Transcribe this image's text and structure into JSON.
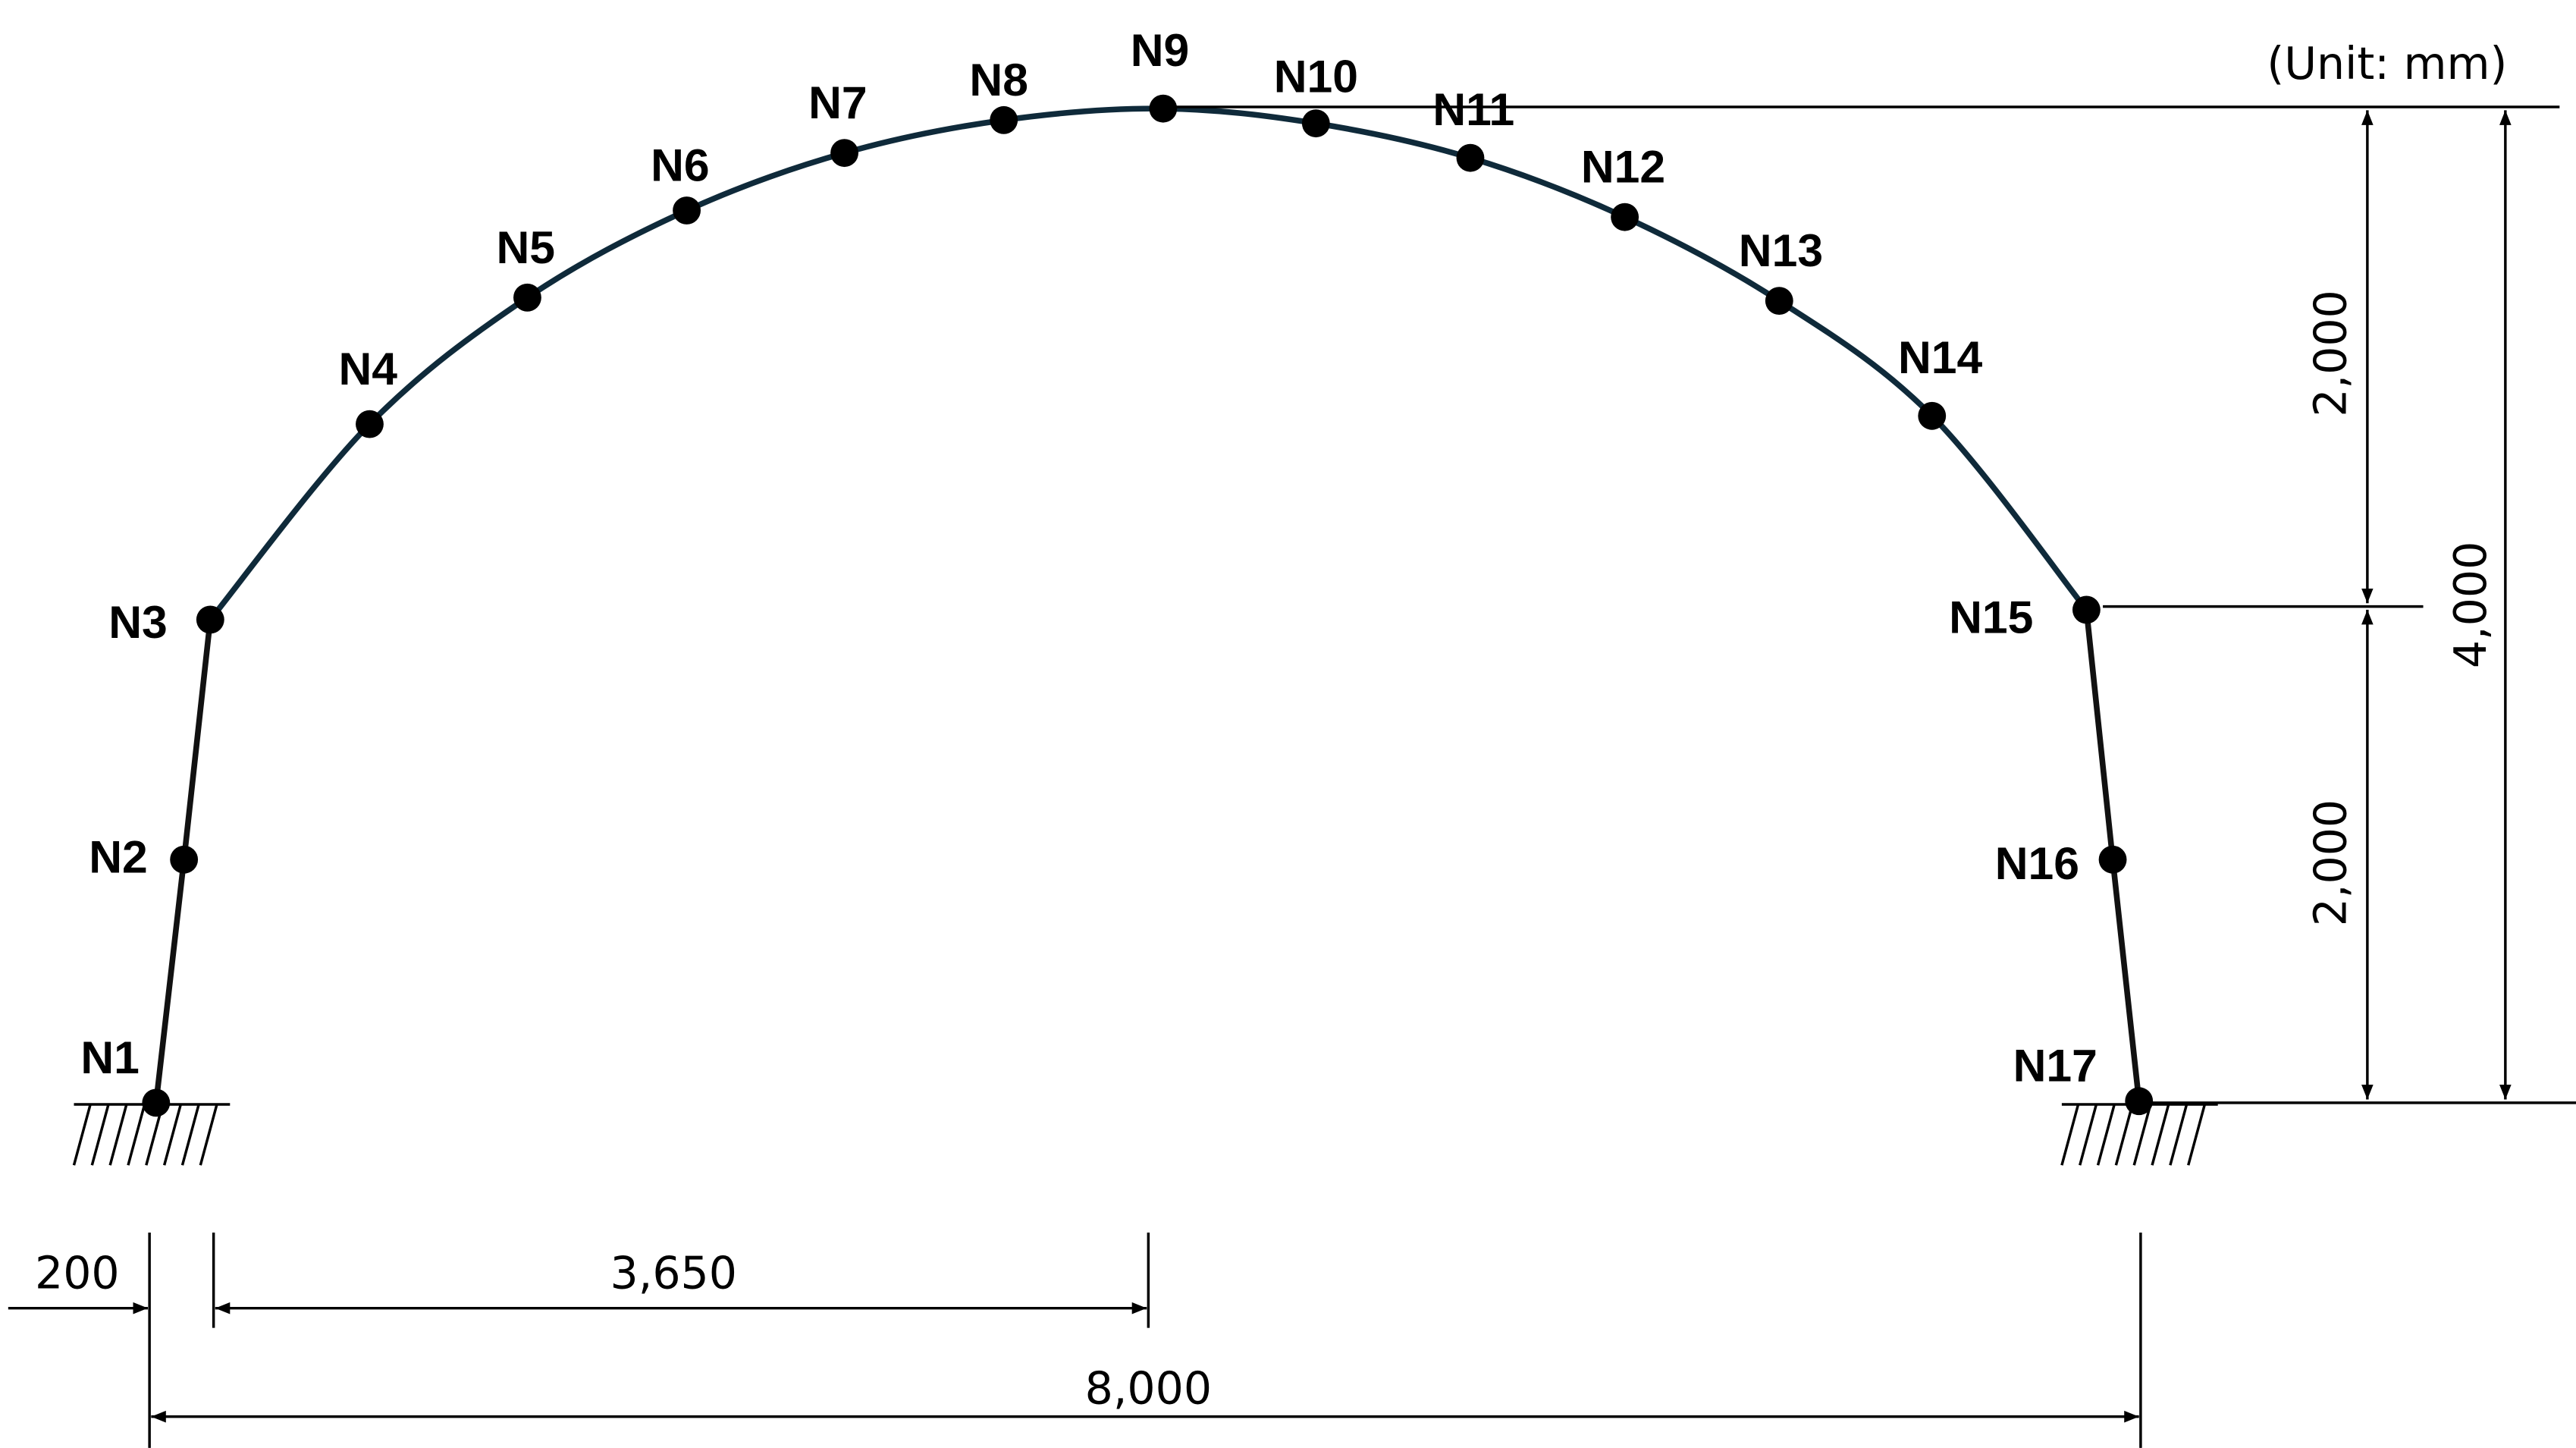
{
  "unit_note": "(Unit: mm)",
  "nodes": [
    "N1",
    "N2",
    "N3",
    "N4",
    "N5",
    "N6",
    "N7",
    "N8",
    "N9",
    "N10",
    "N11",
    "N12",
    "N13",
    "N14",
    "N15",
    "N16",
    "N17"
  ],
  "dimensions": {
    "left_offset": "200",
    "half_span": "3,650",
    "total_span": "8,000",
    "arch_height": "2,000",
    "wall_height": "2,000",
    "total_height": "4,000"
  },
  "colors": {
    "arch": "#0f2a3a",
    "text": "#000000"
  }
}
